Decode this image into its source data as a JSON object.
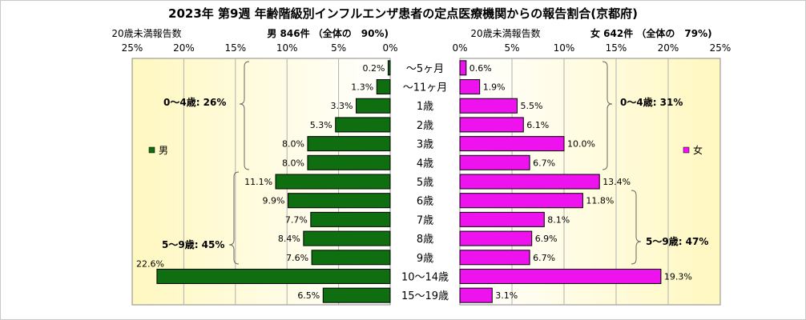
{
  "chart_data": {
    "type": "bar",
    "title": "2023年 第9週  年齢階級別インフルエンザ患者の定点医療機関からの報告割合(京都府)",
    "categories": [
      "～5ヶ月",
      "～11ヶ月",
      "1歳",
      "2歳",
      "3歳",
      "4歳",
      "5歳",
      "6歳",
      "7歳",
      "8歳",
      "9歳",
      "10～14歳",
      "15～19歳"
    ],
    "xlim": [
      0,
      25
    ],
    "tick_values": [
      0,
      5,
      10,
      15,
      20,
      25
    ],
    "left_ticks": [
      "25%",
      "20%",
      "15%",
      "10%",
      "5%",
      "0%"
    ],
    "right_ticks": [
      "0%",
      "5%",
      "10%",
      "15%",
      "20%",
      "25%"
    ],
    "note_left": "20歳未満報告数",
    "note_right": "20歳未満報告数",
    "series": [
      {
        "name": "男",
        "header": "男 846件 （全体の　90%)",
        "color": "#0f6e0f",
        "values": [
          0.2,
          1.3,
          3.3,
          5.3,
          8.0,
          8.0,
          11.1,
          9.9,
          7.7,
          8.4,
          7.6,
          22.6,
          6.5
        ],
        "labels": [
          "0.2%",
          "1.3%",
          "3.3%",
          "5.3%",
          "8.0%",
          "8.0%",
          "11.1%",
          "9.9%",
          "7.7%",
          "8.4%",
          "7.6%",
          "22.6%",
          "6.5%"
        ],
        "legend": "男",
        "group_0_4": "0～4歳: 26%",
        "group_5_9": "5～9歳: 45%"
      },
      {
        "name": "女",
        "header": "女 642件 （全体の　79%)",
        "color": "#ee12ee",
        "values": [
          0.6,
          1.9,
          5.5,
          6.1,
          10.0,
          6.7,
          13.4,
          11.8,
          8.1,
          6.9,
          6.7,
          19.3,
          3.1
        ],
        "labels": [
          "0.6%",
          "1.9%",
          "5.5%",
          "6.1%",
          "10.0%",
          "6.7%",
          "13.4%",
          "11.8%",
          "8.1%",
          "6.9%",
          "6.7%",
          "19.3%",
          "3.1%"
        ],
        "legend": "女",
        "group_0_4": "0～4歳: 31%",
        "group_5_9": "5～9歳: 47%"
      }
    ]
  }
}
